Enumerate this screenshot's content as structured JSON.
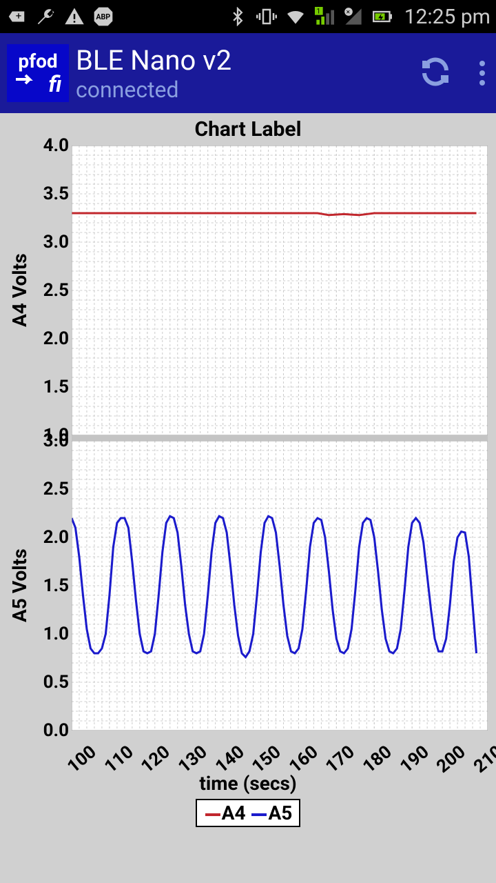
{
  "status": {
    "time": "12:25 pm"
  },
  "app": {
    "logo_top": "pfod",
    "logo_bottom": "fi",
    "title": "BLE Nano v2",
    "subtitle": "connected"
  },
  "chart": {
    "title": "Chart Label",
    "xlabel": "time (secs)",
    "xlim": [
      100,
      210
    ],
    "xtick_step": 10,
    "xticks": [
      100,
      110,
      120,
      130,
      140,
      150,
      160,
      170,
      180,
      190,
      200,
      210
    ],
    "minor_x_divisions": 5,
    "background_color": "#ffffff",
    "page_bg": "#d0d0d0",
    "grid_color": "#cccccc",
    "panel1": {
      "ylabel": "A4 Volts",
      "ylim": [
        1.0,
        4.0
      ],
      "ytick_step": 0.5,
      "yticks": [
        1.0,
        1.5,
        2.0,
        2.5,
        3.0,
        3.5,
        4.0
      ],
      "series": {
        "name": "A4",
        "color": "#c1272d",
        "line_width": 3,
        "data": [
          [
            100,
            3.3
          ],
          [
            110,
            3.3
          ],
          [
            120,
            3.3
          ],
          [
            130,
            3.3
          ],
          [
            140,
            3.3
          ],
          [
            150,
            3.3
          ],
          [
            160,
            3.3
          ],
          [
            165,
            3.3
          ],
          [
            168,
            3.28
          ],
          [
            172,
            3.29
          ],
          [
            176,
            3.28
          ],
          [
            180,
            3.3
          ],
          [
            190,
            3.3
          ],
          [
            200,
            3.3
          ],
          [
            207,
            3.3
          ]
        ]
      }
    },
    "panel2": {
      "ylabel": "A5 Volts",
      "ylim": [
        0.0,
        3.0
      ],
      "ytick_step": 0.5,
      "yticks": [
        0.0,
        0.5,
        1.0,
        1.5,
        2.0,
        2.5,
        3.0
      ],
      "series": {
        "name": "A5",
        "color": "#1b1bcc",
        "line_width": 3,
        "data": [
          [
            100,
            2.2
          ],
          [
            101,
            2.1
          ],
          [
            102,
            1.8
          ],
          [
            103,
            1.4
          ],
          [
            104,
            1.05
          ],
          [
            105,
            0.85
          ],
          [
            106,
            0.8
          ],
          [
            107,
            0.8
          ],
          [
            108,
            0.85
          ],
          [
            109,
            1.0
          ],
          [
            110,
            1.4
          ],
          [
            111,
            1.9
          ],
          [
            112,
            2.15
          ],
          [
            113,
            2.2
          ],
          [
            114,
            2.2
          ],
          [
            115,
            2.1
          ],
          [
            116,
            1.75
          ],
          [
            117,
            1.35
          ],
          [
            118,
            1.0
          ],
          [
            119,
            0.82
          ],
          [
            120,
            0.8
          ],
          [
            121,
            0.82
          ],
          [
            122,
            1.0
          ],
          [
            123,
            1.4
          ],
          [
            124,
            1.85
          ],
          [
            125,
            2.15
          ],
          [
            126,
            2.22
          ],
          [
            127,
            2.2
          ],
          [
            128,
            2.05
          ],
          [
            129,
            1.7
          ],
          [
            130,
            1.3
          ],
          [
            131,
            1.0
          ],
          [
            132,
            0.82
          ],
          [
            133,
            0.8
          ],
          [
            134,
            0.82
          ],
          [
            135,
            1.0
          ],
          [
            136,
            1.4
          ],
          [
            137,
            1.85
          ],
          [
            138,
            2.15
          ],
          [
            139,
            2.22
          ],
          [
            140,
            2.2
          ],
          [
            141,
            2.05
          ],
          [
            142,
            1.7
          ],
          [
            143,
            1.3
          ],
          [
            144,
            0.98
          ],
          [
            145,
            0.8
          ],
          [
            146,
            0.76
          ],
          [
            147,
            0.82
          ],
          [
            148,
            1.0
          ],
          [
            149,
            1.4
          ],
          [
            150,
            1.85
          ],
          [
            151,
            2.15
          ],
          [
            152,
            2.22
          ],
          [
            153,
            2.2
          ],
          [
            154,
            2.05
          ],
          [
            155,
            1.7
          ],
          [
            156,
            1.3
          ],
          [
            157,
            0.98
          ],
          [
            158,
            0.82
          ],
          [
            159,
            0.8
          ],
          [
            160,
            0.85
          ],
          [
            161,
            1.05
          ],
          [
            162,
            1.45
          ],
          [
            163,
            1.9
          ],
          [
            164,
            2.15
          ],
          [
            165,
            2.2
          ],
          [
            166,
            2.18
          ],
          [
            167,
            2.0
          ],
          [
            168,
            1.65
          ],
          [
            169,
            1.25
          ],
          [
            170,
            0.95
          ],
          [
            171,
            0.82
          ],
          [
            172,
            0.8
          ],
          [
            173,
            0.85
          ],
          [
            174,
            1.05
          ],
          [
            175,
            1.45
          ],
          [
            176,
            1.9
          ],
          [
            177,
            2.15
          ],
          [
            178,
            2.2
          ],
          [
            179,
            2.18
          ],
          [
            180,
            2.0
          ],
          [
            181,
            1.65
          ],
          [
            182,
            1.25
          ],
          [
            183,
            0.95
          ],
          [
            184,
            0.82
          ],
          [
            185,
            0.8
          ],
          [
            186,
            0.85
          ],
          [
            187,
            1.05
          ],
          [
            188,
            1.45
          ],
          [
            189,
            1.9
          ],
          [
            190,
            2.15
          ],
          [
            191,
            2.2
          ],
          [
            192,
            2.15
          ],
          [
            193,
            1.95
          ],
          [
            194,
            1.6
          ],
          [
            195,
            1.25
          ],
          [
            196,
            0.95
          ],
          [
            197,
            0.82
          ],
          [
            198,
            0.82
          ],
          [
            199,
            0.95
          ],
          [
            200,
            1.3
          ],
          [
            201,
            1.75
          ],
          [
            202,
            2.0
          ],
          [
            203,
            2.06
          ],
          [
            204,
            2.05
          ],
          [
            205,
            1.8
          ],
          [
            206,
            1.3
          ],
          [
            207,
            0.8
          ]
        ]
      }
    },
    "legend": {
      "items": [
        {
          "label": "A4",
          "color": "#c1272d"
        },
        {
          "label": "A5",
          "color": "#1b1bcc"
        }
      ]
    }
  }
}
